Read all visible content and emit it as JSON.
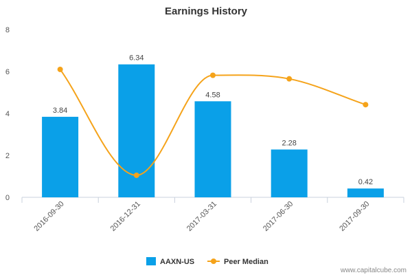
{
  "chart_data": {
    "type": "bar",
    "title": "Earnings History",
    "categories": [
      "2016-09-30",
      "2016-12-31",
      "2017-03-31",
      "2017-06-30",
      "2017-09-30"
    ],
    "series": [
      {
        "name": "AAXN-US",
        "type": "bar",
        "color": "#0aa0e8",
        "values": [
          3.84,
          6.34,
          4.58,
          2.28,
          0.42
        ],
        "data_labels": [
          "3.84",
          "6.34",
          "4.58",
          "2.28",
          "0.42"
        ]
      },
      {
        "name": "Peer Median",
        "type": "line",
        "color": "#f5a31a",
        "values": [
          6.1,
          1.05,
          5.82,
          5.65,
          4.42
        ]
      }
    ],
    "ylim": [
      0,
      8
    ],
    "yticks": [
      "0",
      "2",
      "4",
      "6",
      "8"
    ],
    "xlabel": "",
    "ylabel": "",
    "grid": false,
    "legend_position": "bottom-center"
  },
  "credit": "www.capitalcube.com"
}
